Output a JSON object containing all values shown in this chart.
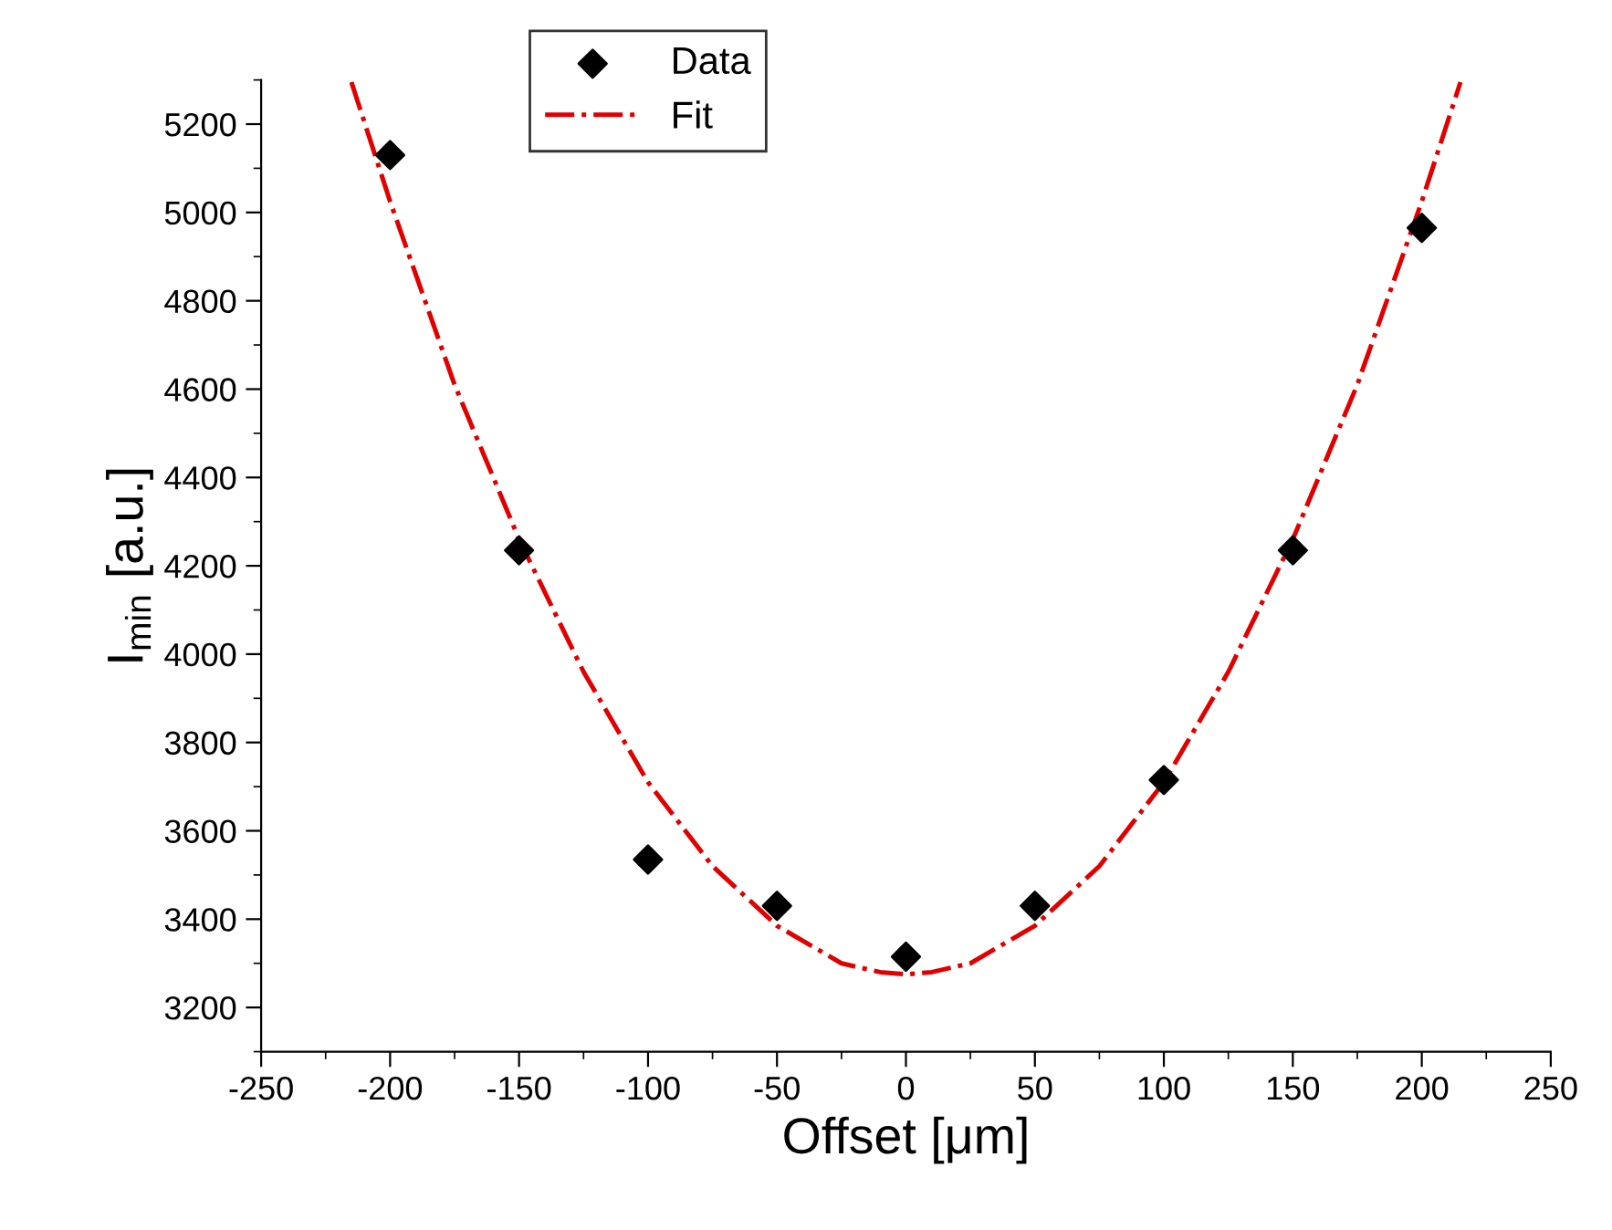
{
  "chart_data": {
    "type": "scatter",
    "xlabel": "Offset [μm]",
    "ylabel": "I$_{min}$ [a.u.]",
    "series": [
      {
        "name": "Data",
        "color": "#000000",
        "marker": "diamond",
        "x": [
          -200,
          -150,
          -100,
          -50,
          0,
          50,
          100,
          150,
          200
        ],
        "values": [
          5130,
          4235,
          3535,
          3430,
          3315,
          3430,
          3715,
          4235,
          4965
        ]
      },
      {
        "name": "Fit",
        "type": "line",
        "color": "#e00000",
        "line_style": "dashdot",
        "marker": "none",
        "x": [
          -215,
          -200,
          -175,
          -150,
          -125,
          -100,
          -75,
          -50,
          -25,
          -10,
          0,
          10,
          25,
          50,
          75,
          100,
          125,
          150,
          175,
          200,
          215
        ],
        "values": [
          5295,
          5025,
          4610,
          4260,
          3960,
          3710,
          3520,
          3385,
          3300,
          3280,
          3275,
          3280,
          3300,
          3385,
          3520,
          3710,
          3960,
          4260,
          4610,
          5025,
          5295
        ]
      }
    ],
    "xlim": [
      -250,
      250
    ],
    "xticks": [
      -250,
      -200,
      -150,
      -100,
      -50,
      0,
      50,
      100,
      150,
      200,
      250
    ],
    "ylim": [
      3100,
      5300
    ],
    "yticks": [
      3200,
      3400,
      3600,
      3800,
      4000,
      4200,
      4400,
      4600,
      4800,
      5000,
      5200
    ],
    "grid": false,
    "legend": "top"
  }
}
